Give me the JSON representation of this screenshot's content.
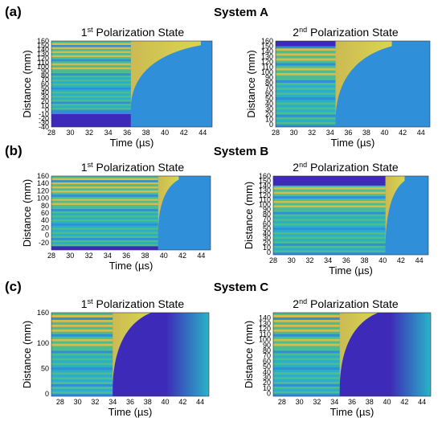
{
  "colors": {
    "low": "#3d2ab8",
    "mid": "#2f8fd8",
    "cyan": "#2ab3c8",
    "green": "#4fc28a",
    "yellow": "#e8c23a",
    "high": "#f7e23a"
  },
  "rows": [
    {
      "label": "(a)",
      "title": "System A"
    },
    {
      "label": "(b)",
      "title": "System B"
    },
    {
      "label": "(c)",
      "title": "System C"
    }
  ],
  "chart_data": [
    {
      "type": "heatmap",
      "row": 0,
      "col": 0,
      "title_main": "1",
      "title_sup": "st",
      "title_rest": " Polarization State",
      "xlabel": "Time (µs)",
      "ylabel": "Distance (mm)",
      "xlim": [
        28,
        45
      ],
      "ylim": [
        -40,
        160
      ],
      "xticks": [
        28,
        30,
        32,
        34,
        36,
        38,
        40,
        42,
        44
      ],
      "yticks": [
        -40,
        -30,
        -20,
        -10,
        0,
        10,
        20,
        30,
        40,
        50,
        60,
        70,
        80,
        90,
        100,
        110,
        120,
        130,
        140,
        150,
        160
      ],
      "ytick_labels": [
        "-40",
        "-30",
        "-20",
        "-10",
        "0",
        "10",
        "20",
        "30",
        "40",
        "50",
        "60",
        "70",
        "80",
        "90",
        "100",
        "110",
        "120",
        "130",
        "140",
        "150",
        "160"
      ],
      "onset_time": 36.4,
      "front_tip": {
        "time": 43.8,
        "distance": 150
      },
      "low_band": [
        -40,
        -10
      ],
      "stripe_start": 0
    },
    {
      "type": "heatmap",
      "row": 0,
      "col": 1,
      "title_main": "2",
      "title_sup": "nd",
      "title_rest": " Polarization State",
      "xlabel": "Time (µs)",
      "ylabel": "Distance (mm)",
      "xlim": [
        28,
        45
      ],
      "ylim": [
        -5,
        160
      ],
      "xticks": [
        28,
        30,
        32,
        34,
        36,
        38,
        40,
        42,
        44
      ],
      "yticks": [
        0,
        10,
        20,
        30,
        40,
        50,
        60,
        70,
        80,
        90,
        100,
        110,
        120,
        130,
        140,
        150,
        160
      ],
      "ytick_labels": [
        "0",
        "10",
        "20",
        "30",
        "40",
        "50",
        "60",
        "70",
        "80",
        "90",
        "100",
        "110",
        "120",
        "130",
        "140",
        "150",
        "160"
      ],
      "onset_time": 34.6,
      "front_tip": {
        "time": 40.8,
        "distance": 150
      },
      "low_band": [
        150,
        160
      ],
      "stripe_start": 0
    },
    {
      "type": "heatmap",
      "row": 1,
      "col": 0,
      "title_main": "1",
      "title_sup": "st",
      "title_rest": " Polarization State",
      "xlabel": "Time (µs)",
      "ylabel": "Distance (mm)",
      "xlim": [
        28,
        45
      ],
      "ylim": [
        -40,
        160
      ],
      "xticks": [
        28,
        30,
        32,
        34,
        36,
        38,
        40,
        42,
        44
      ],
      "yticks": [
        -20,
        0,
        20,
        40,
        60,
        80,
        100,
        120,
        140,
        160
      ],
      "ytick_labels": [
        "-20",
        "0",
        "20",
        "40",
        "60",
        "80",
        "100",
        "120",
        "140",
        "160"
      ],
      "onset_time": 39.4,
      "front_tip": {
        "time": 41.6,
        "distance": 150
      },
      "low_band": [
        -40,
        -30
      ],
      "stripe_start": -30
    },
    {
      "type": "heatmap",
      "row": 1,
      "col": 1,
      "title_main": "2",
      "title_sup": "nd",
      "title_rest": " Polarization State",
      "xlabel": "Time (µs)",
      "ylabel": "Distance (mm)",
      "xlim": [
        28,
        45
      ],
      "ylim": [
        -5,
        160
      ],
      "xticks": [
        28,
        30,
        32,
        34,
        36,
        38,
        40,
        42,
        44
      ],
      "yticks": [
        0,
        10,
        20,
        30,
        40,
        50,
        60,
        70,
        80,
        90,
        100,
        110,
        120,
        130,
        140,
        150,
        160
      ],
      "ytick_labels": [
        "0",
        "10",
        "20",
        "30",
        "40",
        "50",
        "60",
        "70",
        "80",
        "90",
        "100",
        "110",
        "120",
        "130",
        "140",
        "150",
        "160"
      ],
      "onset_time": 40.3,
      "front_tip": {
        "time": 42.4,
        "distance": 150
      },
      "low_band": [
        140,
        160
      ],
      "stripe_start": 0
    },
    {
      "type": "heatmap",
      "row": 2,
      "col": 0,
      "title_main": "1",
      "title_sup": "st",
      "title_rest": " Polarization State",
      "xlabel": "Time (µs)",
      "ylabel": "Distance (mm)",
      "xlim": [
        27,
        45
      ],
      "ylim": [
        -5,
        160
      ],
      "xticks": [
        28,
        30,
        32,
        34,
        36,
        38,
        40,
        42,
        44
      ],
      "yticks": [
        0,
        50,
        100,
        160
      ],
      "ytick_labels": [
        "0",
        "50",
        "100",
        "160"
      ],
      "onset_time": 34.0,
      "front_tip": {
        "time": 38.4,
        "distance": 160
      },
      "low_band": [],
      "stripe_start": 0,
      "tail": "fade"
    },
    {
      "type": "heatmap",
      "row": 2,
      "col": 1,
      "title_main": "2",
      "title_sup": "nd",
      "title_rest": " Polarization State",
      "xlabel": "Time (µs)",
      "ylabel": "Distance (mm)",
      "xlim": [
        27,
        45
      ],
      "ylim": [
        -5,
        150
      ],
      "xticks": [
        28,
        30,
        32,
        34,
        36,
        38,
        40,
        42,
        44
      ],
      "yticks": [
        0,
        10,
        20,
        30,
        40,
        50,
        60,
        70,
        80,
        90,
        100,
        110,
        120,
        130,
        140
      ],
      "ytick_labels": [
        "0",
        "10",
        "20",
        "30",
        "40",
        "50",
        "60",
        "70",
        "80",
        "90",
        "100",
        "110",
        "120",
        "130",
        "140"
      ],
      "onset_time": 34.6,
      "front_tip": {
        "time": 39.0,
        "distance": 150
      },
      "low_band": [],
      "stripe_start": 0,
      "tail": "fade"
    }
  ]
}
